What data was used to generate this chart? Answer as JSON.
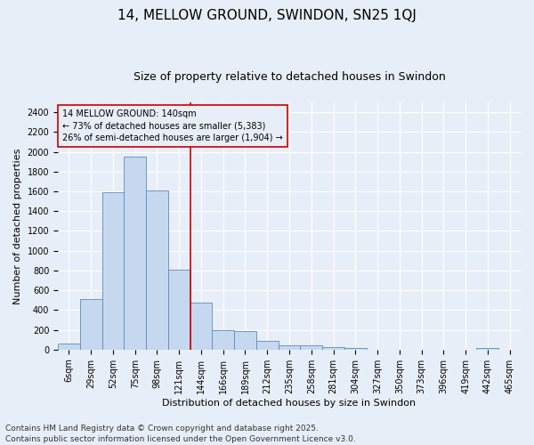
{
  "title": "14, MELLOW GROUND, SWINDON, SN25 1QJ",
  "subtitle": "Size of property relative to detached houses in Swindon",
  "xlabel": "Distribution of detached houses by size in Swindon",
  "ylabel": "Number of detached properties",
  "bar_categories": [
    "6sqm",
    "29sqm",
    "52sqm",
    "75sqm",
    "98sqm",
    "121sqm",
    "144sqm",
    "166sqm",
    "189sqm",
    "212sqm",
    "235sqm",
    "258sqm",
    "281sqm",
    "304sqm",
    "327sqm",
    "350sqm",
    "373sqm",
    "396sqm",
    "419sqm",
    "442sqm",
    "465sqm"
  ],
  "bar_values": [
    60,
    510,
    1590,
    1950,
    1610,
    810,
    480,
    200,
    190,
    90,
    45,
    40,
    30,
    18,
    0,
    0,
    0,
    0,
    0,
    20,
    0
  ],
  "bar_color": "#c5d8f0",
  "bar_edgecolor": "#5b8db8",
  "vline_x_index": 5.5,
  "vline_color": "#cc0000",
  "ylim": [
    0,
    2500
  ],
  "yticks": [
    0,
    200,
    400,
    600,
    800,
    1000,
    1200,
    1400,
    1600,
    1800,
    2000,
    2200,
    2400
  ],
  "annotation_title": "14 MELLOW GROUND: 140sqm",
  "annotation_line1": "← 73% of detached houses are smaller (5,383)",
  "annotation_line2": "26% of semi-detached houses are larger (1,904) →",
  "annotation_box_color": "#cc0000",
  "footer": "Contains HM Land Registry data © Crown copyright and database right 2025.\nContains public sector information licensed under the Open Government Licence v3.0.",
  "bg_color": "#e8eef8",
  "grid_color": "#ffffff",
  "title_fontsize": 11,
  "subtitle_fontsize": 9,
  "axis_label_fontsize": 8,
  "tick_fontsize": 7,
  "footer_fontsize": 6.5,
  "annotation_fontsize": 7
}
